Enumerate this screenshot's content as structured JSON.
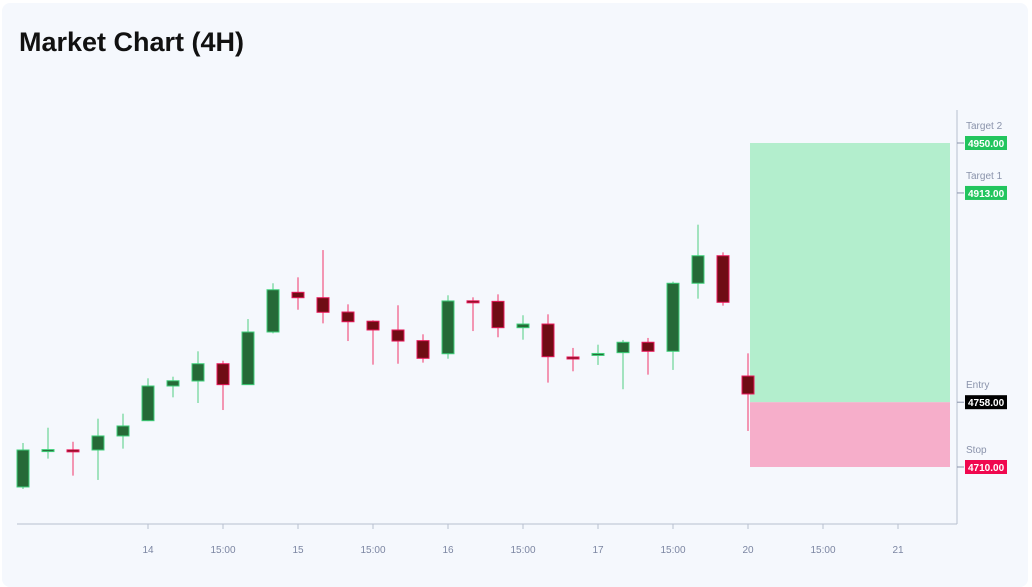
{
  "title": "Market Chart (4H)",
  "chart_data": {
    "type": "candlestick",
    "title": "Market Chart (4H)",
    "timeframe": "4H",
    "candles": [
      {
        "t": "13 04:00",
        "o": 4695.2,
        "h": 4727.8,
        "l": 4693.7,
        "c": 4722.6
      },
      {
        "t": "13 08:00",
        "o": 4722.6,
        "h": 4739.1,
        "l": 4716.2,
        "c": 4722.9
      },
      {
        "t": "13 12:00",
        "o": 4722.7,
        "h": 4728.7,
        "l": 4703.6,
        "c": 4722.4
      },
      {
        "t": "13 16:00",
        "o": 4722.6,
        "h": 4745.8,
        "l": 4700.4,
        "c": 4733.0
      },
      {
        "t": "13 20:00",
        "o": 4733.0,
        "h": 4749.5,
        "l": 4723.6,
        "c": 4740.4
      },
      {
        "t": "14 00:00",
        "o": 4744.3,
        "h": 4775.7,
        "l": 4744.0,
        "c": 4770.0
      },
      {
        "t": "14 04:00",
        "o": 4770.0,
        "h": 4776.9,
        "l": 4761.6,
        "c": 4773.9
      },
      {
        "t": "14 08:00",
        "o": 4773.7,
        "h": 4795.7,
        "l": 4757.4,
        "c": 4786.5
      },
      {
        "t": "14 12:00",
        "o": 4786.5,
        "h": 4788.7,
        "l": 4752.2,
        "c": 4771.0
      },
      {
        "t": "14 16:00",
        "o": 4771.0,
        "h": 4819.6,
        "l": 4770.8,
        "c": 4810.0
      },
      {
        "t": "14 20:00",
        "o": 4810.0,
        "h": 4846.1,
        "l": 4809.0,
        "c": 4841.3
      },
      {
        "t": "15 00:00",
        "o": 4839.4,
        "h": 4850.5,
        "l": 4826.5,
        "c": 4835.4
      },
      {
        "t": "15 04:00",
        "o": 4835.4,
        "h": 4870.7,
        "l": 4816.4,
        "c": 4824.6
      },
      {
        "t": "15 08:00",
        "o": 4824.8,
        "h": 4830.5,
        "l": 4803.3,
        "c": 4817.6
      },
      {
        "t": "15 12:00",
        "o": 4818.0,
        "h": 4818.7,
        "l": 4785.8,
        "c": 4811.5
      },
      {
        "t": "15 16:00",
        "o": 4811.5,
        "h": 4829.8,
        "l": 4786.5,
        "c": 4803.3
      },
      {
        "t": "15 20:00",
        "o": 4803.6,
        "h": 4808.3,
        "l": 4787.3,
        "c": 4790.5
      },
      {
        "t": "16 00:00",
        "o": 4793.9,
        "h": 4837.2,
        "l": 4790.2,
        "c": 4833.0
      },
      {
        "t": "16 04:00",
        "o": 4833.1,
        "h": 4835.7,
        "l": 4810.7,
        "c": 4832.7
      },
      {
        "t": "16 08:00",
        "o": 4832.7,
        "h": 4837.9,
        "l": 4806.1,
        "c": 4813.2
      },
      {
        "t": "16 12:00",
        "o": 4813.2,
        "h": 4822.4,
        "l": 4804.3,
        "c": 4815.9
      },
      {
        "t": "16 16:00",
        "o": 4815.9,
        "h": 4823.1,
        "l": 4772.5,
        "c": 4791.7
      },
      {
        "t": "16 20:00",
        "o": 4791.5,
        "h": 4798.2,
        "l": 4780.9,
        "c": 4791.1
      },
      {
        "t": "17 00:00",
        "o": 4793.7,
        "h": 4800.6,
        "l": 4785.6,
        "c": 4794.1
      },
      {
        "t": "17 04:00",
        "o": 4794.7,
        "h": 4804.1,
        "l": 4767.6,
        "c": 4802.4
      },
      {
        "t": "17 08:00",
        "o": 4802.4,
        "h": 4805.6,
        "l": 4778.4,
        "c": 4795.7
      },
      {
        "t": "17 12:00",
        "o": 4795.7,
        "h": 4847.3,
        "l": 4781.9,
        "c": 4846.1
      },
      {
        "t": "17 16:00",
        "o": 4846.1,
        "h": 4889.5,
        "l": 4834.7,
        "c": 4866.5
      },
      {
        "t": "17 20:00",
        "o": 4866.5,
        "h": 4869.0,
        "l": 4829.5,
        "c": 4832.0
      },
      {
        "t": "20 00:00",
        "o": 4777.4,
        "h": 4794.2,
        "l": 4736.7,
        "c": 4764.1
      }
    ],
    "x_ticks": [
      "14",
      "15:00",
      "15",
      "15:00",
      "16",
      "15:00",
      "17",
      "15:00",
      "20",
      "15:00",
      "21"
    ],
    "levels": [
      {
        "name": "Target 2",
        "value": 4950.0,
        "label": "4950.00",
        "color": "#22c55e"
      },
      {
        "name": "Target 1",
        "value": 4913.0,
        "label": "4913.00",
        "color": "#22c55e"
      },
      {
        "name": "Entry",
        "value": 4758.0,
        "label": "4758.00",
        "color": "#000000"
      },
      {
        "name": "Stop",
        "value": 4710.0,
        "label": "4710.00",
        "color": "#f0084f"
      }
    ],
    "zones": [
      {
        "type": "profit",
        "from": 4758,
        "to": 4950,
        "color": "#b3eecd"
      },
      {
        "type": "loss",
        "from": 4710,
        "to": 4758,
        "color": "#f6aeca"
      }
    ],
    "colors": {
      "up_body": "#266a37",
      "up_border": "#3fcf7a",
      "up_wick": "#86dcaa",
      "down_body": "#700c14",
      "down_border": "#e8185a",
      "down_wick": "#f2769a"
    },
    "grid": false
  }
}
